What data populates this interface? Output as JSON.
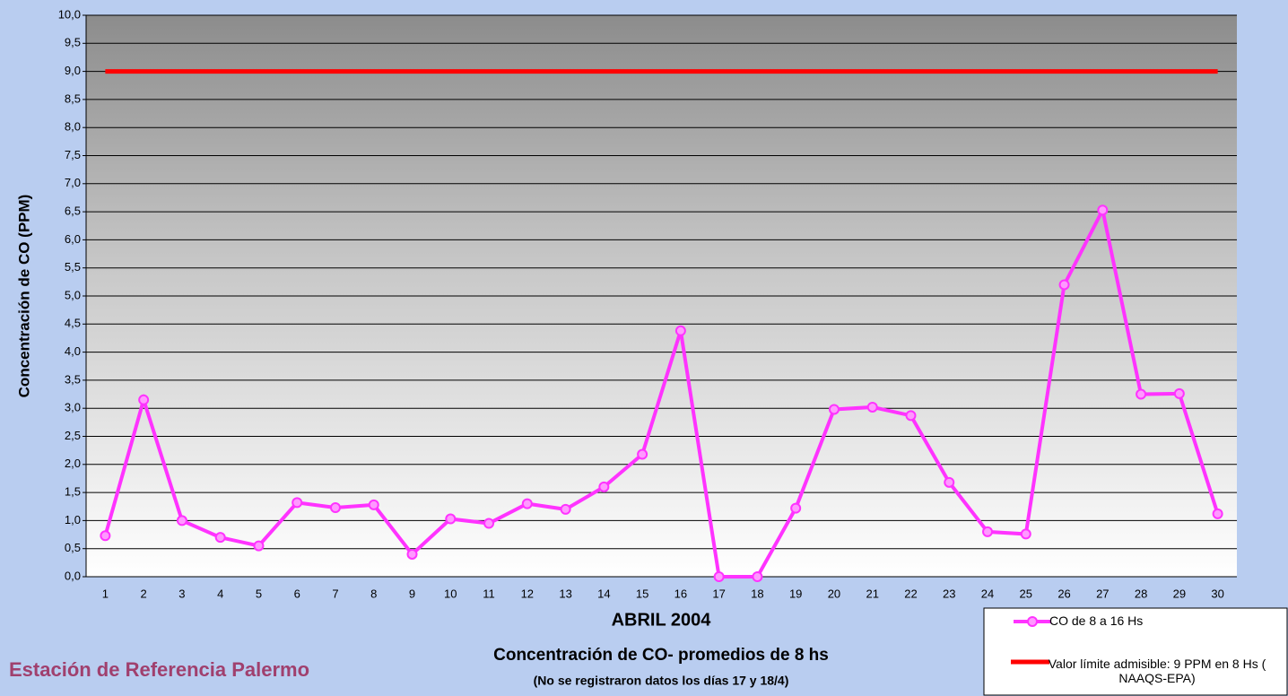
{
  "chart_data": {
    "type": "line",
    "ylabel": "Concentración de CO (PPM)",
    "xlabel": "ABRIL 2004",
    "subtitle": "Concentración de CO- promedios de 8 hs",
    "note": "(No se registraron datos los días 17 y 18/4)",
    "station": "Estación de Referencia Palermo",
    "categories": [
      "1",
      "2",
      "3",
      "4",
      "5",
      "6",
      "7",
      "8",
      "9",
      "10",
      "11",
      "12",
      "13",
      "14",
      "15",
      "16",
      "17",
      "18",
      "19",
      "20",
      "21",
      "22",
      "23",
      "24",
      "25",
      "26",
      "27",
      "28",
      "29",
      "30"
    ],
    "series": [
      {
        "name": "CO de 8 a 16 Hs",
        "color": "#ff33ff",
        "marker": true,
        "values": [
          0.73,
          3.15,
          1.0,
          0.7,
          0.55,
          1.32,
          1.23,
          1.28,
          0.4,
          1.03,
          0.95,
          1.3,
          1.2,
          1.6,
          2.18,
          4.38,
          0,
          0,
          1.22,
          2.98,
          3.02,
          2.87,
          1.68,
          0.8,
          0.76,
          5.2,
          6.53,
          3.25,
          3.26,
          1.12
        ]
      },
      {
        "name": "Valor límite admisible: 9 PPM en 8 Hs ( NAAQS-EPA)",
        "color": "#ff0000",
        "marker": false,
        "values": [
          9,
          9,
          9,
          9,
          9,
          9,
          9,
          9,
          9,
          9,
          9,
          9,
          9,
          9,
          9,
          9,
          9,
          9,
          9,
          9,
          9,
          9,
          9,
          9,
          9,
          9,
          9,
          9,
          9,
          9
        ]
      }
    ],
    "ylim": [
      0,
      10
    ],
    "yticks": [
      {
        "value": 0,
        "label": "0,0"
      },
      {
        "value": 0.5,
        "label": "0,5"
      },
      {
        "value": 1,
        "label": "1,0"
      },
      {
        "value": 1.5,
        "label": "1,5"
      },
      {
        "value": 2,
        "label": "2,0"
      },
      {
        "value": 2.5,
        "label": "2,5"
      },
      {
        "value": 3,
        "label": "3,0"
      },
      {
        "value": 3.5,
        "label": "3,5"
      },
      {
        "value": 4,
        "label": "4,0"
      },
      {
        "value": 4.5,
        "label": "4,5"
      },
      {
        "value": 5,
        "label": "5,0"
      },
      {
        "value": 5.5,
        "label": "5,5"
      },
      {
        "value": 6,
        "label": "6,0"
      },
      {
        "value": 6.5,
        "label": "6,5"
      },
      {
        "value": 7,
        "label": "7,0"
      },
      {
        "value": 7.5,
        "label": "7,5"
      },
      {
        "value": 8,
        "label": "8,0"
      },
      {
        "value": 8.5,
        "label": "8,5"
      },
      {
        "value": 9,
        "label": "9,0"
      },
      {
        "value": 9.5,
        "label": "9,5"
      },
      {
        "value": 10,
        "label": "10,0"
      }
    ],
    "grid": true
  }
}
